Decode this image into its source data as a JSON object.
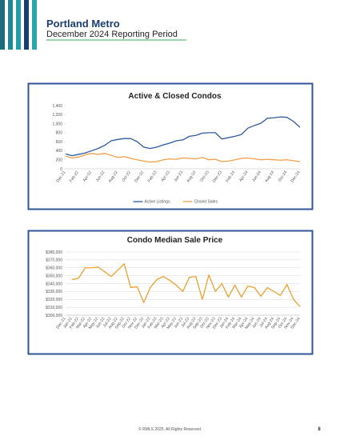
{
  "header": {
    "title": "Portland Metro",
    "subtitle": "December 2024 Reporting Period"
  },
  "footer": {
    "copyright": "© RMLS 2025. All Rights Reserved",
    "page": "8"
  },
  "chart_data": [
    {
      "type": "line",
      "title": "Active & Closed Condos",
      "categories": [
        "Dec-21",
        null,
        "Feb-22",
        null,
        "Apr-22",
        null,
        "Jun-22",
        null,
        "Aug-22",
        null,
        "Oct-22",
        null,
        "Dec-22",
        null,
        "Feb-23",
        null,
        "Apr-23",
        null,
        "Jun-23",
        null,
        "Aug-23",
        null,
        "Oct-23",
        null,
        "Dec-23",
        null,
        "Feb-24",
        null,
        "Apr-24",
        null,
        "Jun-24",
        null,
        "Aug-24",
        null,
        "Oct-24",
        null,
        "Dec-24"
      ],
      "series": [
        {
          "name": "Active Listings",
          "color": "#2e5a9e",
          "values": [
            330,
            290,
            320,
            350,
            400,
            450,
            520,
            620,
            650,
            670,
            670,
            600,
            480,
            450,
            480,
            530,
            570,
            620,
            640,
            720,
            740,
            790,
            800,
            800,
            660,
            690,
            720,
            760,
            900,
            960,
            1010,
            1120,
            1130,
            1150,
            1140,
            1050,
            920
          ]
        },
        {
          "name": "Closed Sales",
          "color": "#f0a04b",
          "values": [
            280,
            240,
            260,
            310,
            340,
            320,
            340,
            300,
            250,
            270,
            230,
            200,
            170,
            150,
            160,
            200,
            220,
            210,
            240,
            230,
            220,
            250,
            200,
            210,
            160,
            170,
            200,
            230,
            240,
            220,
            200,
            210,
            200,
            190,
            200,
            180,
            160
          ]
        }
      ],
      "ylim": [
        0,
        1400
      ],
      "yticks": [
        0,
        200,
        400,
        600,
        800,
        {
          "value": 1000,
          "label": "1,000"
        },
        {
          "value": 1200,
          "label": "1,200"
        },
        {
          "value": 1400,
          "label": "1,400"
        }
      ],
      "grid": false,
      "legend": "bottom"
    },
    {
      "type": "line",
      "title": "Condo Median Sale Price",
      "categories": [
        "Dec-21",
        "Jan-22",
        "Feb-22",
        "Mar-22",
        "Apr-22",
        "May-22",
        "Jun-22",
        "Jul-22",
        "Aug-22",
        "Sep-22",
        "Oct-22",
        "Nov-22",
        "Dec-22",
        "Jan-23",
        "Feb-23",
        "Mar-23",
        "Apr-23",
        "May-23",
        "Jun-23",
        "Jul-23",
        "Aug-23",
        "Sep-23",
        "Oct-23",
        "Nov-23",
        "Dec-23",
        "Jan-24",
        "Feb-24",
        "Mar-24",
        "Apr-24",
        "May-24",
        "Jun-24",
        "Jul-24",
        "Aug-24",
        "Sep-24",
        "Oct-24",
        "Nov-24",
        "Dec-24"
      ],
      "values": [
        null,
        345000,
        347000,
        360000,
        360000,
        361000,
        355000,
        349000,
        357000,
        365000,
        335000,
        336000,
        316000,
        335000,
        345000,
        349000,
        344000,
        338000,
        330000,
        348000,
        349000,
        320000,
        351000,
        330000,
        340000,
        323000,
        338000,
        323000,
        337000,
        335000,
        324000,
        335000,
        330000,
        325000,
        339000,
        320000,
        311000
      ],
      "color": "#f0a030",
      "ylim": [
        300000,
        380000
      ],
      "yticks": [
        {
          "value": 300000,
          "label": "$300,000"
        },
        {
          "value": 310000,
          "label": "$310,000"
        },
        {
          "value": 320000,
          "label": "$320,000"
        },
        {
          "value": 330000,
          "label": "$330,000"
        },
        {
          "value": 340000,
          "label": "$340,000"
        },
        {
          "value": 350000,
          "label": "$350,000"
        },
        {
          "value": 360000,
          "label": "$360,000"
        },
        {
          "value": 370000,
          "label": "$370,000"
        },
        {
          "value": 380000,
          "label": "$380,000"
        }
      ],
      "grid": true
    }
  ]
}
